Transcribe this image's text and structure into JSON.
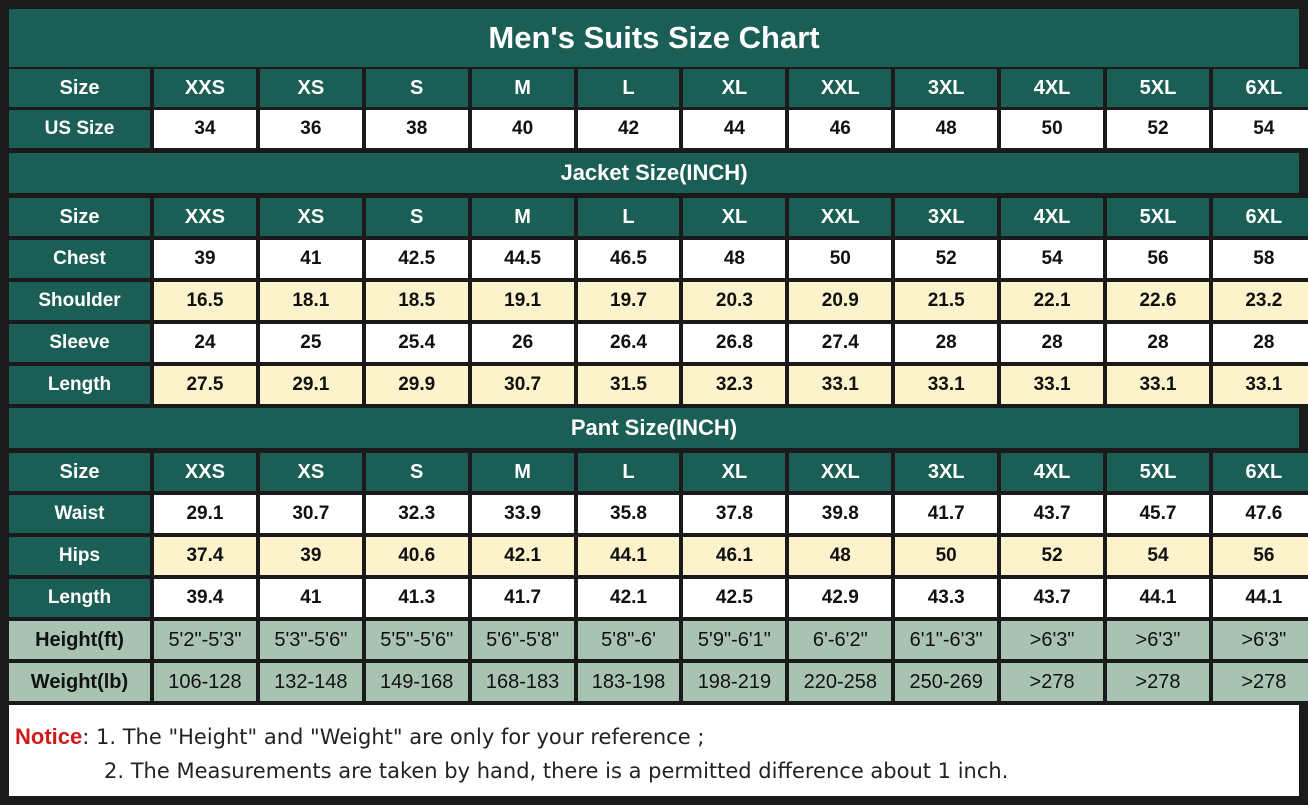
{
  "chart_data": {
    "type": "table",
    "title": "Men's Suits Size Chart",
    "sizes": [
      "XXS",
      "XS",
      "S",
      "M",
      "L",
      "XL",
      "XXL",
      "3XL",
      "4XL",
      "5XL",
      "6XL"
    ],
    "size_label": "Size",
    "us_size": {
      "label": "US Size",
      "values": [
        "34",
        "36",
        "38",
        "40",
        "42",
        "44",
        "46",
        "48",
        "50",
        "52",
        "54"
      ]
    },
    "jacket": {
      "title": "Jacket Size(INCH)",
      "rows": [
        {
          "label": "Chest",
          "values": [
            "39",
            "41",
            "42.5",
            "44.5",
            "46.5",
            "48",
            "50",
            "52",
            "54",
            "56",
            "58"
          ]
        },
        {
          "label": "Shoulder",
          "values": [
            "16.5",
            "18.1",
            "18.5",
            "19.1",
            "19.7",
            "20.3",
            "20.9",
            "21.5",
            "22.1",
            "22.6",
            "23.2"
          ]
        },
        {
          "label": "Sleeve",
          "values": [
            "24",
            "25",
            "25.4",
            "26",
            "26.4",
            "26.8",
            "27.4",
            "28",
            "28",
            "28",
            "28"
          ]
        },
        {
          "label": "Length",
          "values": [
            "27.5",
            "29.1",
            "29.9",
            "30.7",
            "31.5",
            "32.3",
            "33.1",
            "33.1",
            "33.1",
            "33.1",
            "33.1"
          ]
        }
      ]
    },
    "pant": {
      "title": "Pant Size(INCH)",
      "rows": [
        {
          "label": "Waist",
          "values": [
            "29.1",
            "30.7",
            "32.3",
            "33.9",
            "35.8",
            "37.8",
            "39.8",
            "41.7",
            "43.7",
            "45.7",
            "47.6"
          ]
        },
        {
          "label": "Hips",
          "values": [
            "37.4",
            "39",
            "40.6",
            "42.1",
            "44.1",
            "46.1",
            "48",
            "50",
            "52",
            "54",
            "56"
          ]
        },
        {
          "label": "Length",
          "values": [
            "39.4",
            "41",
            "41.3",
            "41.7",
            "42.1",
            "42.5",
            "42.9",
            "43.3",
            "43.7",
            "44.1",
            "44.1"
          ]
        }
      ]
    },
    "reference": [
      {
        "label": "Height(ft)",
        "values": [
          "5'2\"-5'3\"",
          "5'3\"-5'6\"",
          "5'5\"-5'6\"",
          "5'6\"-5'8\"",
          "5'8\"-6'",
          "5'9\"-6'1\"",
          "6'-6'2\"",
          "6'1\"-6'3\"",
          ">6'3\"",
          ">6'3\"",
          ">6'3\""
        ]
      },
      {
        "label": "Weight(lb)",
        "values": [
          "106-128",
          "132-148",
          "149-168",
          "168-183",
          "183-198",
          "198-219",
          "220-258",
          "250-269",
          ">278",
          ">278",
          ">278"
        ]
      }
    ]
  },
  "notice": {
    "label": "Notice",
    "line1": ": 1. The \"Height\" and \"Weight\" are only for your reference ;",
    "line2": "2. The Measurements are taken by hand, there is a permitted difference about 1 inch."
  },
  "colors": {
    "header": "#1b5e56",
    "cream": "#fcf2cc",
    "sage": "#a9c3b3",
    "notice": "#d11a1a"
  }
}
